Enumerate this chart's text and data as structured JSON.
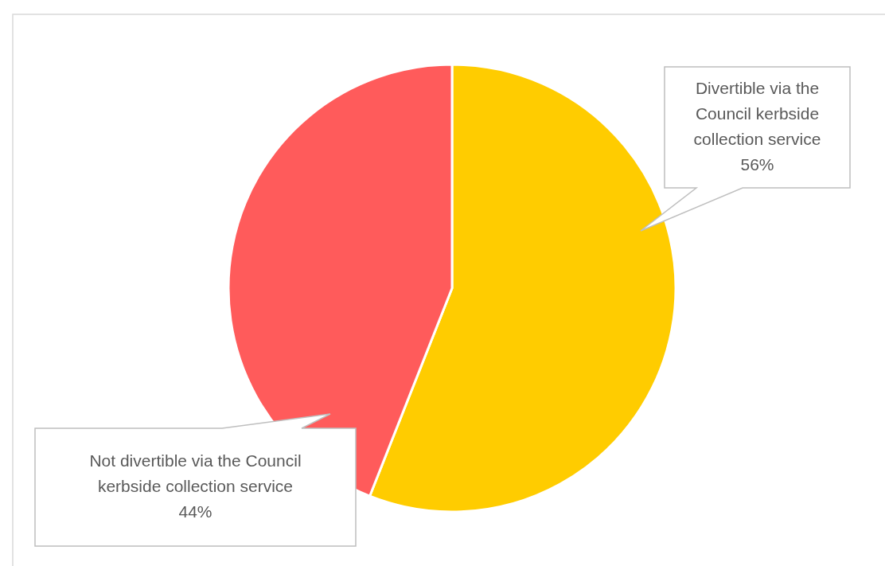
{
  "chart_data": {
    "type": "pie",
    "categories": [
      "Divertible via the Council kerbside collection service",
      "Not divertible via the Council kerbside collection service"
    ],
    "values": [
      56,
      44
    ],
    "colors": [
      "#ffcc00",
      "#ff5b5b"
    ],
    "value_labels": [
      "56%",
      "44%"
    ]
  }
}
